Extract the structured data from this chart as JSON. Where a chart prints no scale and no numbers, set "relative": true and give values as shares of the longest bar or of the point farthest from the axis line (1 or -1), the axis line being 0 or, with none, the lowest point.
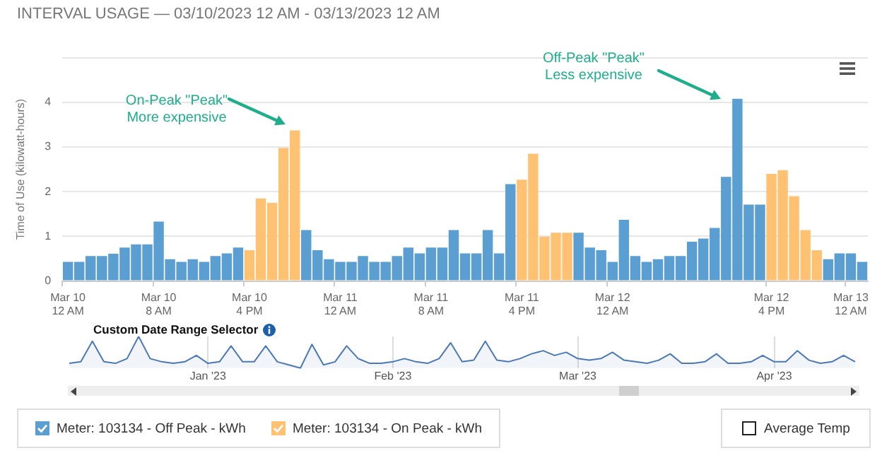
{
  "chart_data": [
    {
      "type": "bar",
      "title": "INTERVAL USAGE — 03/10/2023 12 AM - 03/13/2023 12 AM",
      "ylabel": "Time of Use (kilowatt-hours)",
      "categories": [
        "Mar 10 12 AM",
        null,
        null,
        null,
        null,
        null,
        null,
        null,
        "Mar 10 8 AM",
        null,
        null,
        null,
        null,
        null,
        null,
        null,
        "Mar 10 4 PM",
        null,
        null,
        null,
        null,
        null,
        null,
        null,
        "Mar 11 12 AM",
        null,
        null,
        null,
        null,
        null,
        null,
        null,
        "Mar 11 8 AM",
        null,
        null,
        null,
        null,
        null,
        null,
        null,
        "Mar 11 4 PM",
        null,
        null,
        null,
        null,
        null,
        null,
        null,
        "Mar 12 12 AM",
        null,
        null,
        null,
        null,
        null,
        null,
        null,
        null,
        null,
        null,
        null,
        null,
        null,
        "Mar 12 4 PM",
        null,
        null,
        null,
        null,
        null,
        null,
        "Mar 13 12 AM",
        null
      ],
      "series": [
        {
          "name": "Meter: 103134 - Off Peak - kWh",
          "color": "#5b9fd2",
          "values": [
            0.43,
            0.43,
            0.56,
            0.56,
            0.61,
            0.75,
            0.82,
            0.82,
            1.33,
            0.49,
            0.43,
            0.49,
            0.43,
            0.56,
            0.62,
            0.75,
            null,
            null,
            null,
            null,
            null,
            1.14,
            0.69,
            0.49,
            0.43,
            0.43,
            0.56,
            0.43,
            0.43,
            0.56,
            0.75,
            0.62,
            0.75,
            0.75,
            1.14,
            0.62,
            0.62,
            1.14,
            0.62,
            2.17,
            null,
            null,
            null,
            null,
            null,
            1.08,
            0.75,
            0.69,
            0.43,
            1.37,
            0.56,
            0.43,
            0.49,
            0.56,
            0.56,
            0.88,
            0.95,
            1.19,
            2.33,
            4.08,
            1.71,
            1.71,
            null,
            null,
            null,
            null,
            null,
            0.49,
            0.62,
            0.62,
            0.43
          ]
        },
        {
          "name": "Meter: 103134 - On Peak - kWh",
          "color": "#ffc273",
          "values": [
            null,
            null,
            null,
            null,
            null,
            null,
            null,
            null,
            null,
            null,
            null,
            null,
            null,
            null,
            null,
            null,
            0.69,
            1.85,
            1.75,
            2.98,
            3.37,
            null,
            null,
            null,
            null,
            null,
            null,
            null,
            null,
            null,
            null,
            null,
            null,
            null,
            null,
            null,
            null,
            null,
            null,
            null,
            2.27,
            2.85,
            0.99,
            1.08,
            1.08,
            null,
            null,
            null,
            null,
            null,
            null,
            null,
            null,
            null,
            null,
            null,
            null,
            null,
            null,
            null,
            null,
            null,
            2.4,
            2.48,
            1.9,
            1.14,
            0.69,
            null,
            null,
            null,
            null
          ]
        }
      ],
      "ylim": [
        0,
        5
      ],
      "yticks": [
        0,
        1,
        2,
        3,
        4,
        {
          "value": 5,
          "label": null
        }
      ],
      "grid": "y",
      "legend": "bottom",
      "annotations": [
        "On-Peak \"Peak\"\nMore expensive",
        "Off-Peak \"Peak\"\nLess expensive",
        "Average Temp"
      ]
    },
    {
      "type": "line",
      "title": "Custom Date Range Selector",
      "relative": true,
      "color": "#4a78b8",
      "grid": "x",
      "categories": [
        null,
        null,
        null,
        null,
        null,
        null,
        null,
        null,
        null,
        null,
        null,
        null,
        "Jan '23",
        null,
        null,
        null,
        null,
        null,
        null,
        null,
        null,
        null,
        null,
        null,
        null,
        null,
        null,
        null,
        "Feb '23",
        null,
        null,
        null,
        null,
        null,
        null,
        null,
        null,
        null,
        null,
        null,
        null,
        null,
        null,
        null,
        "Mar '23",
        null,
        null,
        null,
        null,
        null,
        null,
        null,
        null,
        null,
        null,
        null,
        null,
        null,
        null,
        null,
        null,
        "Apr '23",
        null,
        null,
        null,
        null,
        null,
        null,
        null
      ],
      "values": [
        0.15,
        0.2,
        0.85,
        0.2,
        0.15,
        0.3,
        1.0,
        0.3,
        0.2,
        0.15,
        0.2,
        0.4,
        0.15,
        0.2,
        0.7,
        0.2,
        0.2,
        0.7,
        0.2,
        0.1,
        0.0,
        0.75,
        0.1,
        0.2,
        0.7,
        0.3,
        0.15,
        0.15,
        0.2,
        0.3,
        0.2,
        0.15,
        0.3,
        0.8,
        0.2,
        0.25,
        0.85,
        0.25,
        0.2,
        0.3,
        0.45,
        0.55,
        0.4,
        0.5,
        0.3,
        0.25,
        0.3,
        0.5,
        0.25,
        0.2,
        0.15,
        0.25,
        0.45,
        0.15,
        0.15,
        0.2,
        0.45,
        0.15,
        0.15,
        0.2,
        0.4,
        0.2,
        0.2,
        0.55,
        0.25,
        0.15,
        0.2,
        0.4,
        0.2
      ]
    }
  ]
}
